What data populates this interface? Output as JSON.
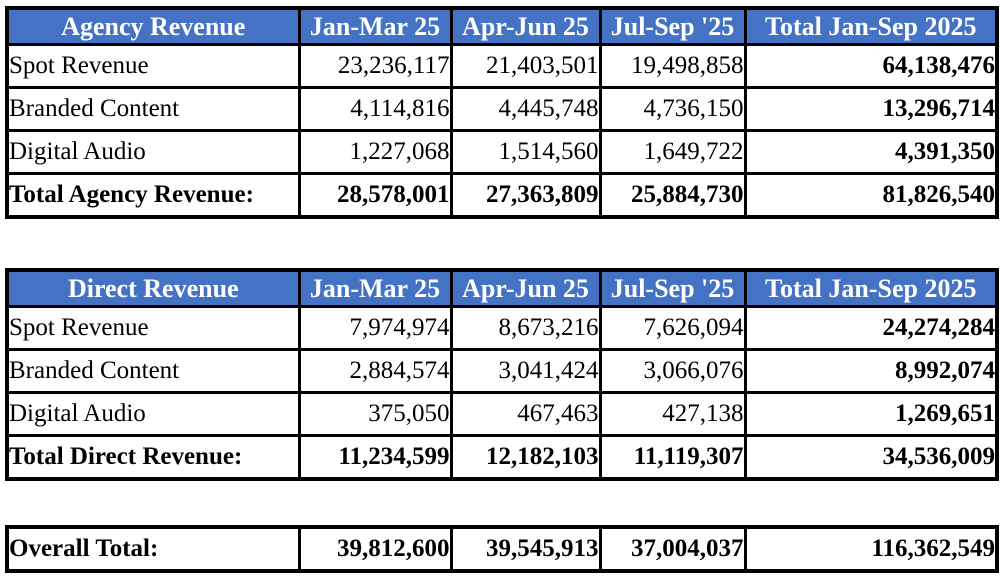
{
  "colors": {
    "header_bg": "#4472C4",
    "header_text": "#FFFFFF",
    "border": "#000000",
    "body_text": "#000000"
  },
  "columns": [
    "Jan-Mar 25",
    "Apr-Jun 25",
    "Jul-Sep '25",
    "Total Jan-Sep 2025"
  ],
  "tables": [
    {
      "title": "Agency Revenue",
      "rows": [
        {
          "label": "Spot Revenue",
          "values": [
            "23,236,117",
            "21,403,501",
            "19,498,858",
            "64,138,476"
          ],
          "bold": false
        },
        {
          "label": "Branded Content",
          "values": [
            "4,114,816",
            "4,445,748",
            "4,736,150",
            "13,296,714"
          ],
          "bold": false
        },
        {
          "label": "Digital Audio",
          "values": [
            "1,227,068",
            "1,514,560",
            "1,649,722",
            "4,391,350"
          ],
          "bold": false
        },
        {
          "label": "Total Agency Revenue:",
          "values": [
            "28,578,001",
            "27,363,809",
            "25,884,730",
            "81,826,540"
          ],
          "bold": true
        }
      ]
    },
    {
      "title": "Direct Revenue",
      "rows": [
        {
          "label": "Spot Revenue",
          "values": [
            "7,974,974",
            "8,673,216",
            "7,626,094",
            "24,274,284"
          ],
          "bold": false
        },
        {
          "label": "Branded Content",
          "values": [
            "2,884,574",
            "3,041,424",
            "3,066,076",
            "8,992,074"
          ],
          "bold": false
        },
        {
          "label": "Digital Audio",
          "values": [
            "375,050",
            "467,463",
            "427,138",
            "1,269,651"
          ],
          "bold": false
        },
        {
          "label": "Total Direct Revenue:",
          "values": [
            "11,234,599",
            "12,182,103",
            "11,119,307",
            "34,536,009"
          ],
          "bold": true
        }
      ]
    }
  ],
  "overall": {
    "label": "Overall Total:",
    "values": [
      "39,812,600",
      "39,545,913",
      "37,004,037",
      "116,362,549"
    ]
  },
  "chart_data": [
    {
      "type": "table",
      "title": "Agency Revenue",
      "columns": [
        "Jan-Mar 25",
        "Apr-Jun 25",
        "Jul-Sep '25",
        "Total Jan-Sep 2025"
      ],
      "rows": [
        {
          "label": "Spot Revenue",
          "values": [
            23236117,
            21403501,
            19498858,
            64138476
          ]
        },
        {
          "label": "Branded Content",
          "values": [
            4114816,
            4445748,
            4736150,
            13296714
          ]
        },
        {
          "label": "Digital Audio",
          "values": [
            1227068,
            1514560,
            1649722,
            4391350
          ]
        },
        {
          "label": "Total Agency Revenue:",
          "values": [
            28578001,
            27363809,
            25884730,
            81826540
          ]
        }
      ]
    },
    {
      "type": "table",
      "title": "Direct Revenue",
      "columns": [
        "Jan-Mar 25",
        "Apr-Jun 25",
        "Jul-Sep '25",
        "Total Jan-Sep 2025"
      ],
      "rows": [
        {
          "label": "Spot Revenue",
          "values": [
            7974974,
            8673216,
            7626094,
            24274284
          ]
        },
        {
          "label": "Branded Content",
          "values": [
            2884574,
            3041424,
            3066076,
            8992074
          ]
        },
        {
          "label": "Digital Audio",
          "values": [
            375050,
            467463,
            427138,
            1269651
          ]
        },
        {
          "label": "Total Direct Revenue:",
          "values": [
            11234599,
            12182103,
            11119307,
            34536009
          ]
        }
      ]
    },
    {
      "type": "table",
      "title": "Overall Total",
      "columns": [
        "Jan-Mar 25",
        "Apr-Jun 25",
        "Jul-Sep '25",
        "Total Jan-Sep 2025"
      ],
      "rows": [
        {
          "label": "Overall Total:",
          "values": [
            39812600,
            39545913,
            37004037,
            116362549
          ]
        }
      ]
    }
  ]
}
